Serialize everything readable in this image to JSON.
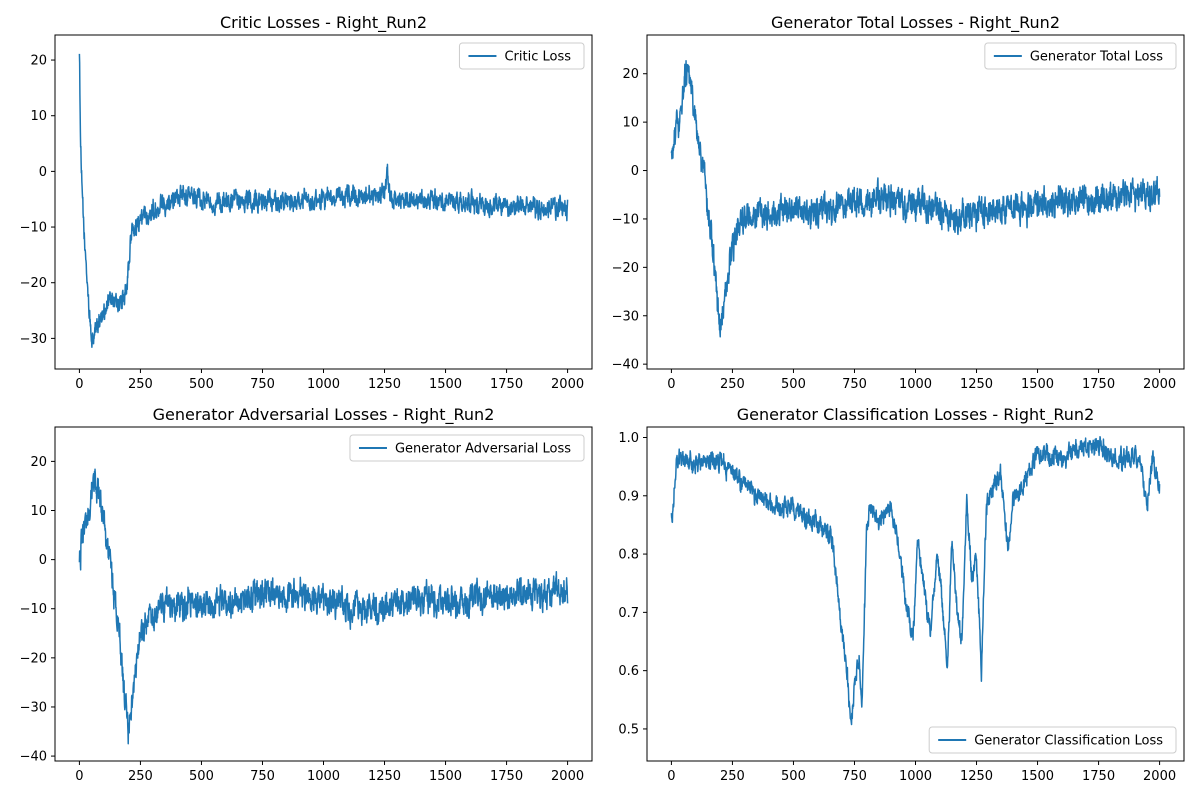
{
  "chart_data": [
    {
      "type": "line",
      "title": "Critic Losses - Right_Run2",
      "xlabel": "",
      "ylabel": "",
      "xlim": [
        -100,
        2100
      ],
      "ylim": [
        -35.5,
        24.5
      ],
      "xticks": [
        0,
        250,
        500,
        750,
        1000,
        1250,
        1500,
        1750,
        2000
      ],
      "yticks": [
        -30,
        -20,
        -10,
        0,
        10,
        20
      ],
      "ytick_labels": [
        "−30",
        "−20",
        "−10",
        "0",
        "10",
        "20"
      ],
      "grid": false,
      "legend_position": "upper-right",
      "series": [
        {
          "name": "Critic Loss",
          "color": "#1f77b4",
          "noise": 1.3,
          "x": [
            0,
            5,
            10,
            20,
            35,
            50,
            70,
            100,
            130,
            160,
            190,
            205,
            215,
            240,
            280,
            330,
            400,
            500,
            600,
            700,
            800,
            900,
            1000,
            1100,
            1200,
            1250,
            1262,
            1275,
            1350,
            1450,
            1550,
            1650,
            1750,
            1850,
            1950,
            2000
          ],
          "y": [
            22,
            5,
            -3,
            -12,
            -22,
            -31,
            -28,
            -25,
            -23,
            -24,
            -22,
            -16,
            -10,
            -9.5,
            -7.5,
            -6,
            -4.5,
            -5,
            -6,
            -5,
            -5.5,
            -5.5,
            -5,
            -4.5,
            -4.5,
            -4.5,
            0,
            -5,
            -5,
            -5.5,
            -5.5,
            -6,
            -6,
            -6.5,
            -6.5,
            -7
          ]
        }
      ]
    },
    {
      "type": "line",
      "title": "Generator Total Losses - Right_Run2",
      "xlabel": "",
      "ylabel": "",
      "xlim": [
        -100,
        2100
      ],
      "ylim": [
        -41,
        28
      ],
      "xticks": [
        0,
        250,
        500,
        750,
        1000,
        1250,
        1500,
        1750,
        2000
      ],
      "yticks": [
        -40,
        -30,
        -20,
        -10,
        0,
        10,
        20
      ],
      "ytick_labels": [
        "−40",
        "−30",
        "−20",
        "−10",
        "0",
        "10",
        "20"
      ],
      "grid": false,
      "legend_position": "upper-right",
      "series": [
        {
          "name": "Generator Total Loss",
          "color": "#1f77b4",
          "noise": 2.2,
          "x": [
            0,
            20,
            40,
            60,
            80,
            100,
            130,
            160,
            185,
            200,
            215,
            240,
            270,
            300,
            350,
            400,
            450,
            480,
            520,
            600,
            700,
            800,
            900,
            1000,
            1100,
            1150,
            1200,
            1300,
            1400,
            1500,
            1600,
            1700,
            1800,
            1900,
            2000
          ],
          "y": [
            2,
            8,
            12,
            20,
            18,
            10,
            0,
            -12,
            -25,
            -33,
            -28,
            -18,
            -12,
            -10,
            -9,
            -9,
            -8,
            -8,
            -8,
            -8.5,
            -7,
            -6,
            -6.5,
            -7,
            -8,
            -9,
            -9,
            -8,
            -7.5,
            -7,
            -6.5,
            -6,
            -5.5,
            -5,
            -5
          ]
        }
      ]
    },
    {
      "type": "line",
      "title": "Generator Adversarial Losses - Right_Run2",
      "xlabel": "",
      "ylabel": "",
      "xlim": [
        -100,
        2100
      ],
      "ylim": [
        -41,
        27
      ],
      "xticks": [
        0,
        250,
        500,
        750,
        1000,
        1250,
        1500,
        1750,
        2000
      ],
      "yticks": [
        -40,
        -30,
        -20,
        -10,
        0,
        10,
        20
      ],
      "ytick_labels": [
        "−40",
        "−30",
        "−20",
        "−10",
        "0",
        "10",
        "20"
      ],
      "grid": false,
      "legend_position": "upper-right",
      "series": [
        {
          "name": "Generator Adversarial Loss",
          "color": "#1f77b4",
          "noise": 2.2,
          "x": [
            0,
            20,
            40,
            60,
            80,
            100,
            130,
            160,
            185,
            200,
            215,
            240,
            270,
            300,
            350,
            400,
            450,
            480,
            520,
            600,
            700,
            800,
            900,
            1000,
            1100,
            1150,
            1200,
            1300,
            1400,
            1500,
            1600,
            1700,
            1800,
            1900,
            2000
          ],
          "y": [
            0.5,
            6,
            10,
            17,
            15,
            8,
            -2,
            -14,
            -27,
            -34,
            -30,
            -18,
            -13,
            -11,
            -10,
            -10,
            -9,
            -9,
            -9.5,
            -9,
            -8,
            -7,
            -7.5,
            -8.5,
            -9.5,
            -10,
            -10,
            -9,
            -8.5,
            -8.5,
            -8,
            -7.5,
            -7,
            -7,
            -6.5
          ]
        }
      ]
    },
    {
      "type": "line",
      "title": "Generator Classification Losses - Right_Run2",
      "xlabel": "",
      "ylabel": "",
      "xlim": [
        -100,
        2100
      ],
      "ylim": [
        0.445,
        1.018
      ],
      "xticks": [
        0,
        250,
        500,
        750,
        1000,
        1250,
        1500,
        1750,
        2000
      ],
      "yticks": [
        0.5,
        0.6,
        0.7,
        0.8,
        0.9,
        1.0
      ],
      "ytick_labels": [
        "0.5",
        "0.6",
        "0.7",
        "0.8",
        "0.9",
        "1.0"
      ],
      "grid": false,
      "legend_position": "lower-right",
      "series": [
        {
          "name": "Generator Classification Loss",
          "color": "#1f77b4",
          "noise": 0.012,
          "x": [
            0,
            10,
            20,
            50,
            100,
            150,
            200,
            250,
            300,
            350,
            400,
            450,
            500,
            550,
            600,
            630,
            660,
            690,
            700,
            720,
            735,
            750,
            770,
            780,
            800,
            820,
            850,
            880,
            900,
            930,
            960,
            990,
            1010,
            1030,
            1060,
            1090,
            1110,
            1130,
            1150,
            1170,
            1190,
            1210,
            1230,
            1250,
            1270,
            1290,
            1320,
            1350,
            1380,
            1400,
            1420,
            1450,
            1480,
            1500,
            1550,
            1600,
            1650,
            1700,
            1750,
            1800,
            1850,
            1900,
            1930,
            1950,
            1970,
            1990,
            2000
          ],
          "y": [
            0.86,
            0.9,
            0.96,
            0.96,
            0.955,
            0.955,
            0.96,
            0.94,
            0.92,
            0.9,
            0.89,
            0.88,
            0.88,
            0.86,
            0.85,
            0.84,
            0.82,
            0.7,
            0.66,
            0.6,
            0.5,
            0.58,
            0.62,
            0.53,
            0.85,
            0.88,
            0.86,
            0.87,
            0.88,
            0.82,
            0.72,
            0.65,
            0.83,
            0.75,
            0.66,
            0.8,
            0.72,
            0.6,
            0.82,
            0.7,
            0.65,
            0.9,
            0.75,
            0.8,
            0.6,
            0.88,
            0.92,
            0.94,
            0.8,
            0.9,
            0.9,
            0.93,
            0.96,
            0.97,
            0.97,
            0.96,
            0.98,
            0.98,
            0.985,
            0.97,
            0.96,
            0.97,
            0.94,
            0.88,
            0.96,
            0.93,
            0.92
          ]
        }
      ]
    }
  ]
}
